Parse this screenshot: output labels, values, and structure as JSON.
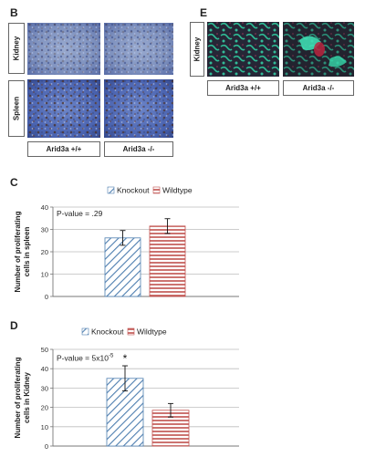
{
  "panel_b": {
    "label": "B",
    "row_labels": [
      "Kidney",
      "Spleen"
    ],
    "col_labels": [
      "Arid3a +/+",
      "Arid3a -/-"
    ]
  },
  "panel_e": {
    "label": "E",
    "row_label": "Kidney",
    "col_labels": [
      "Arid3a +/+",
      "Arid3a -/-"
    ]
  },
  "chart_data": [
    {
      "panel": "C",
      "type": "bar",
      "categories": [
        "Knockout",
        "Wildtype"
      ],
      "values": [
        26.2,
        31.5
      ],
      "errors": [
        3.3,
        3.3
      ],
      "legend": [
        "Knockout",
        "Wildtype"
      ],
      "legend_position": "top",
      "annotation": "P-value = .29",
      "ylabel": "Number of proliferating cells in spleen",
      "ylim": [
        0,
        40
      ],
      "yticks": [
        0,
        10,
        20,
        30,
        40
      ],
      "grid": true,
      "colors": {
        "knockout": "#4f7fb0",
        "wildtype": "#c0504d"
      }
    },
    {
      "panel": "D",
      "type": "bar",
      "categories": [
        "Knockout",
        "Wildtype"
      ],
      "values": [
        35,
        18.5
      ],
      "errors": [
        6.5,
        3.5
      ],
      "legend": [
        "Knockout",
        "Wildtype"
      ],
      "legend_position": "top",
      "annotation_main": "P-value = 5x10",
      "annotation_sup": "-5",
      "significance": "*",
      "ylabel": "Number of proliferating cells in Kidney",
      "ylim": [
        0,
        50
      ],
      "yticks": [
        0,
        10,
        20,
        30,
        40,
        50
      ],
      "grid": true,
      "colors": {
        "knockout": "#4f7fb0",
        "wildtype": "#c0504d"
      }
    }
  ]
}
